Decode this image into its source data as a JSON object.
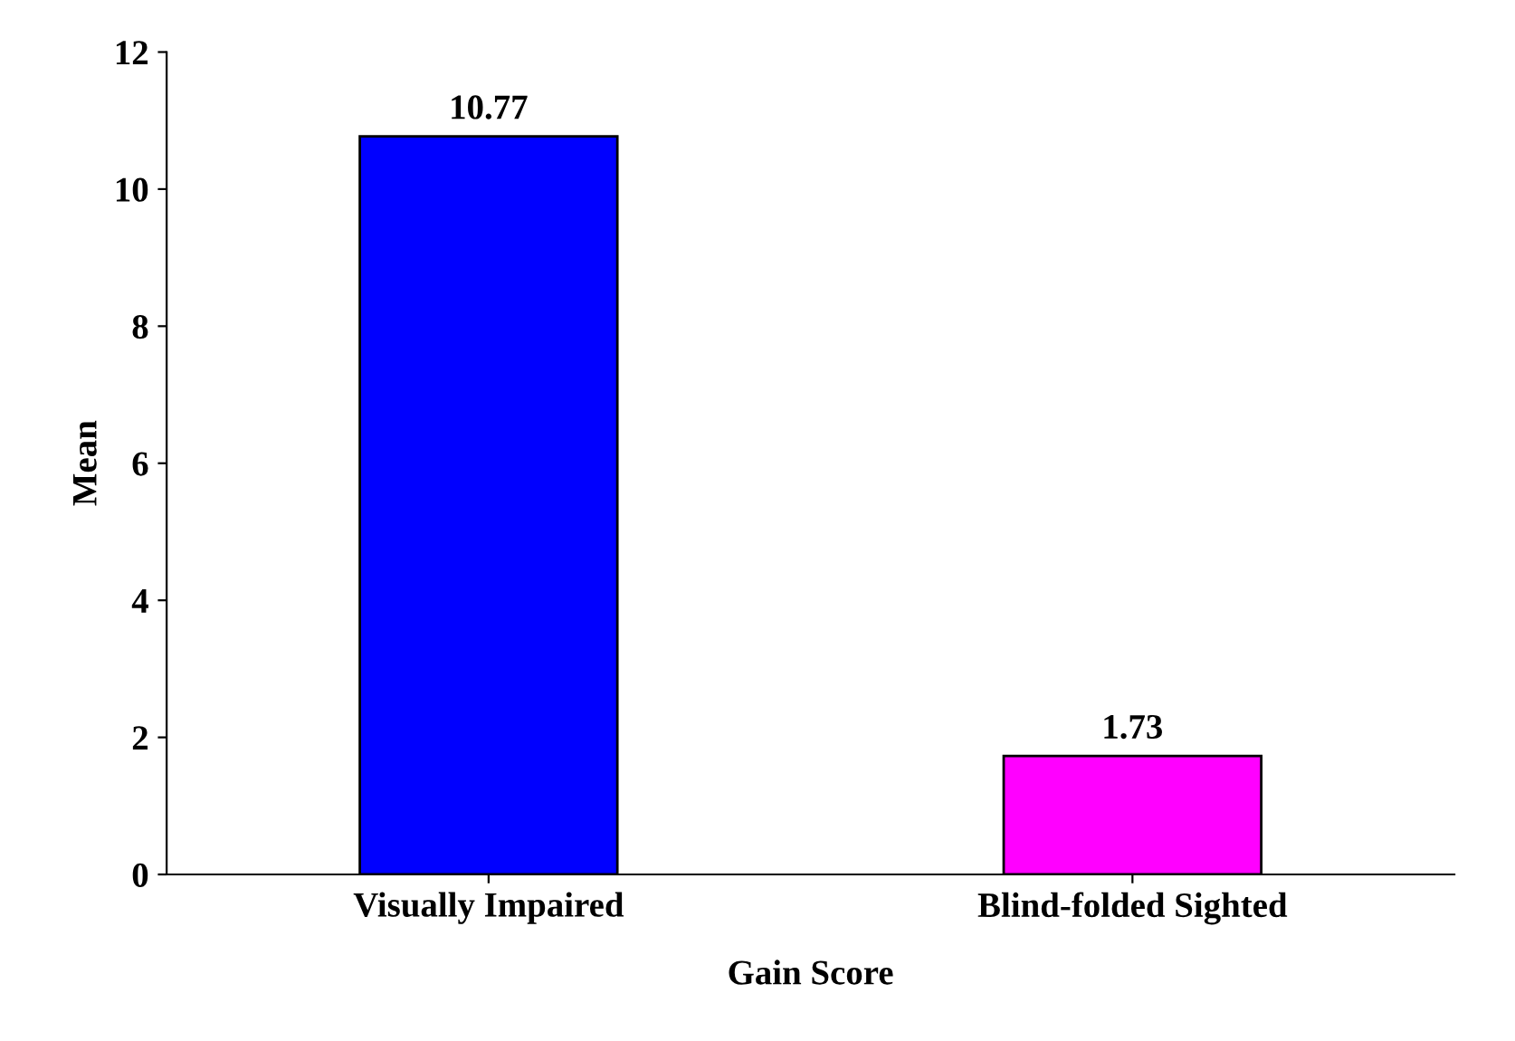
{
  "chart_data": {
    "type": "bar",
    "xlabel": "Gain Score",
    "ylabel": "Mean",
    "categories": [
      "Visually Impaired",
      "Blind-folded Sighted"
    ],
    "values": [
      10.77,
      1.73
    ],
    "colors": [
      "#0000ff",
      "#ff00ff"
    ],
    "ylim": [
      0,
      12
    ],
    "yticks": [
      0,
      2,
      4,
      6,
      8,
      10,
      12
    ],
    "data_labels": true,
    "grid": false,
    "legend": false
  }
}
